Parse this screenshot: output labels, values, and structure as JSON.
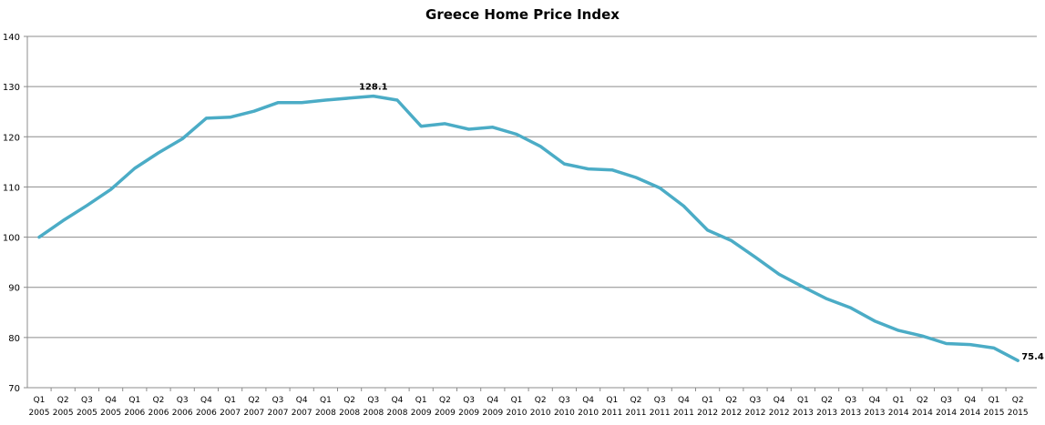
{
  "chart_data": {
    "type": "line",
    "title": "Greece Home Price Index",
    "xlabel": "",
    "ylabel": "",
    "ylim": [
      70,
      140
    ],
    "yticks": [
      70,
      80,
      90,
      100,
      110,
      120,
      130,
      140
    ],
    "grid": true,
    "legend": "none",
    "color": "#4bacc6",
    "categories": [
      [
        "Q1",
        "2005"
      ],
      [
        "Q2",
        "2005"
      ],
      [
        "Q3",
        "2005"
      ],
      [
        "Q4",
        "2005"
      ],
      [
        "Q1",
        "2006"
      ],
      [
        "Q2",
        "2006"
      ],
      [
        "Q3",
        "2006"
      ],
      [
        "Q4",
        "2006"
      ],
      [
        "Q1",
        "2007"
      ],
      [
        "Q2",
        "2007"
      ],
      [
        "Q3",
        "2007"
      ],
      [
        "Q4",
        "2007"
      ],
      [
        "Q1",
        "2008"
      ],
      [
        "Q2",
        "2008"
      ],
      [
        "Q3",
        "2008"
      ],
      [
        "Q4",
        "2008"
      ],
      [
        "Q1",
        "2009"
      ],
      [
        "Q2",
        "2009"
      ],
      [
        "Q3",
        "2009"
      ],
      [
        "Q4",
        "2009"
      ],
      [
        "Q1",
        "2010"
      ],
      [
        "Q2",
        "2010"
      ],
      [
        "Q3",
        "2010"
      ],
      [
        "Q4",
        "2010"
      ],
      [
        "Q1",
        "2011"
      ],
      [
        "Q2",
        "2011"
      ],
      [
        "Q3",
        "2011"
      ],
      [
        "Q4",
        "2011"
      ],
      [
        "Q1",
        "2012"
      ],
      [
        "Q2",
        "2012"
      ],
      [
        "Q3",
        "2012"
      ],
      [
        "Q4",
        "2012"
      ],
      [
        "Q1",
        "2013"
      ],
      [
        "Q2",
        "2013"
      ],
      [
        "Q3",
        "2013"
      ],
      [
        "Q4",
        "2013"
      ],
      [
        "Q1",
        "2014"
      ],
      [
        "Q2",
        "2014"
      ],
      [
        "Q3",
        "2014"
      ],
      [
        "Q4",
        "2014"
      ],
      [
        "Q1",
        "2015"
      ],
      [
        "Q2",
        "2015"
      ]
    ],
    "series": [
      {
        "values": [
          100,
          103.3,
          106.3,
          109.5,
          113.7,
          116.8,
          119.6,
          123.7,
          123.9,
          125.1,
          126.8,
          126.8,
          127.3,
          127.7,
          128.1,
          127.3,
          122.1,
          122.6,
          121.5,
          121.9,
          120.5,
          118.1,
          114.6,
          113.6,
          113.4,
          111.9,
          109.8,
          106.2,
          101.4,
          99.3,
          96.0,
          92.6,
          90.1,
          87.7,
          85.9,
          83.3,
          81.4,
          80.3,
          78.8,
          78.6,
          77.9,
          75.4
        ]
      }
    ],
    "data_labels": [
      {
        "index": 14,
        "text": "128.1"
      },
      {
        "index": 41,
        "text": "75.4"
      }
    ]
  }
}
